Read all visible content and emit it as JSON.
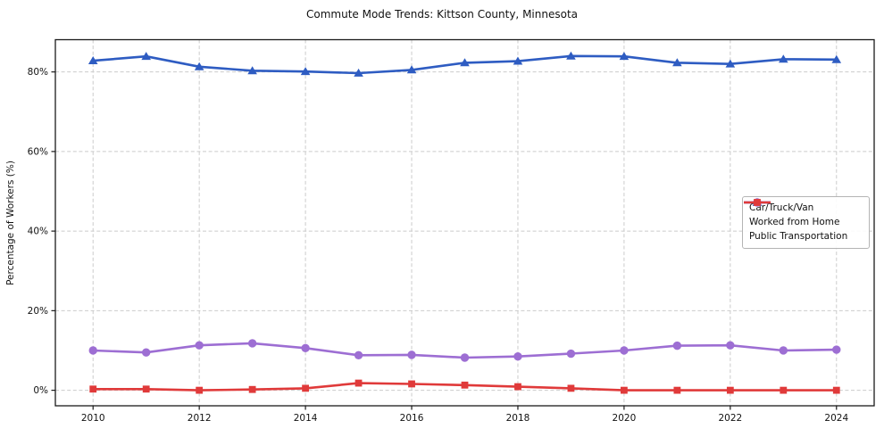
{
  "chart_data": {
    "type": "line",
    "title": "Commute Mode Trends: Kittson County, Minnesota",
    "xlabel": "",
    "ylabel": "Percentage of Workers (%)",
    "grid": true,
    "legend_position": "center-right",
    "xlim": [
      2009.29,
      2024.71
    ],
    "ylim": [
      -3.9,
      88.1
    ],
    "x": [
      2010,
      2011,
      2012,
      2013,
      2014,
      2015,
      2016,
      2017,
      2018,
      2019,
      2020,
      2021,
      2022,
      2023,
      2024
    ],
    "x_ticks": [
      2010,
      2012,
      2014,
      2016,
      2018,
      2020,
      2022,
      2024
    ],
    "x_tick_labels": [
      "2010",
      "2012",
      "2014",
      "2016",
      "2018",
      "2020",
      "2022",
      "2024"
    ],
    "y_ticks": [
      0,
      20,
      40,
      60,
      80
    ],
    "y_tick_labels": [
      "0%",
      "20%",
      "40%",
      "60%",
      "80%"
    ],
    "series": [
      {
        "name": "Car/Truck/Van",
        "color": "#2e5cc2",
        "marker": "triangle",
        "values": [
          82.8,
          83.9,
          81.3,
          80.3,
          80.1,
          79.7,
          80.5,
          82.3,
          82.7,
          84.0,
          83.9,
          82.3,
          82.0,
          83.2,
          83.1
        ]
      },
      {
        "name": "Worked from Home",
        "color": "#9d6ed3",
        "marker": "circle",
        "values": [
          10.0,
          9.5,
          11.3,
          11.8,
          10.6,
          8.8,
          8.9,
          8.2,
          8.5,
          9.2,
          10.0,
          11.2,
          11.3,
          10.0,
          10.2
        ]
      },
      {
        "name": "Public Transportation",
        "color": "#e03a3a",
        "marker": "square",
        "values": [
          0.3,
          0.3,
          0.0,
          0.2,
          0.5,
          1.8,
          1.6,
          1.3,
          0.9,
          0.5,
          0.0,
          0.0,
          0.0,
          0.0,
          0.0
        ]
      }
    ]
  }
}
